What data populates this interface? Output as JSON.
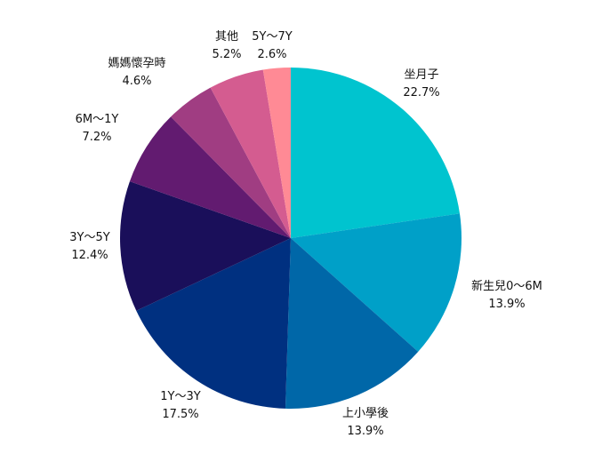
{
  "chart_data": {
    "type": "pie",
    "title": "",
    "start_angle_deg": 0,
    "direction": "clockwise",
    "slices": [
      {
        "label": "坐月子",
        "value": 22.7,
        "pct_text": "22.7%",
        "color": "#00C4CF"
      },
      {
        "label": "新生兒0～6M",
        "value": 13.9,
        "pct_text": "13.9%",
        "color": "#00A0C8"
      },
      {
        "label": "上小學後",
        "value": 13.9,
        "pct_text": "13.9%",
        "color": "#0067A8"
      },
      {
        "label": "1Y～3Y",
        "value": 17.5,
        "pct_text": "17.5%",
        "color": "#003080"
      },
      {
        "label": "3Y～5Y",
        "value": 12.4,
        "pct_text": "12.4%",
        "color": "#1A0F5A"
      },
      {
        "label": "6M～1Y",
        "value": 7.2,
        "pct_text": "7.2%",
        "color": "#621B70"
      },
      {
        "label": "媽媽懷孕時",
        "value": 4.6,
        "pct_text": "4.6%",
        "color": "#A03D82"
      },
      {
        "label": "其他",
        "value": 5.2,
        "pct_text": "5.2%",
        "color": "#D45C90"
      },
      {
        "label": "5Y～7Y",
        "value": 2.6,
        "pct_text": "2.6%",
        "color": "#FF8A95"
      }
    ]
  }
}
